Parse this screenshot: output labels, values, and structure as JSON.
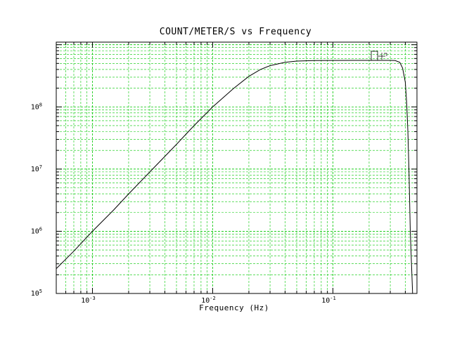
{
  "chart_data": {
    "type": "line",
    "title": "COUNT/METER/S vs Frequency",
    "xlabel": "Frequency (Hz)",
    "ylabel": "",
    "xscale": "log",
    "yscale": "log",
    "xlim": [
      0.0005,
      0.5
    ],
    "ylim": [
      100000,
      1100000000
    ],
    "grid": true,
    "legend_placement": "top-right",
    "x_tick_labels": [
      {
        "base": "10",
        "exp": "-3",
        "value": 0.001
      },
      {
        "base": "10",
        "exp": "-2",
        "value": 0.01
      },
      {
        "base": "10",
        "exp": "-1",
        "value": 0.1
      }
    ],
    "y_tick_labels": [
      {
        "base": "10",
        "exp": "5",
        "value": 100000
      },
      {
        "base": "10",
        "exp": "6",
        "value": 1000000
      },
      {
        "base": "10",
        "exp": "7",
        "value": 10000000
      },
      {
        "base": "10",
        "exp": "8",
        "value": 100000000
      }
    ],
    "series": [
      {
        "name": "",
        "color": "#000000",
        "x": [
          0.0005,
          0.0007,
          0.001,
          0.0015,
          0.002,
          0.003,
          0.005,
          0.007,
          0.01,
          0.015,
          0.02,
          0.025,
          0.03,
          0.04,
          0.05,
          0.07,
          0.1,
          0.15,
          0.2,
          0.3,
          0.33,
          0.36,
          0.38,
          0.4,
          0.41,
          0.42,
          0.43,
          0.44,
          0.46
        ],
        "values": [
          250000,
          480000,
          1000000,
          2200000,
          4000000,
          9000000,
          25000000,
          50000000,
          100000000,
          200000000,
          310000000,
          400000000,
          460000000,
          520000000,
          545000000,
          555000000,
          558000000,
          560000000,
          560000000,
          560000000,
          555000000,
          520000000,
          420000000,
          250000000,
          120000000,
          40000000,
          8000000,
          1000000,
          100000
        ]
      }
    ]
  },
  "colors": {
    "grid": "#00c800",
    "axes": "#000000",
    "background": "#ffffff"
  }
}
